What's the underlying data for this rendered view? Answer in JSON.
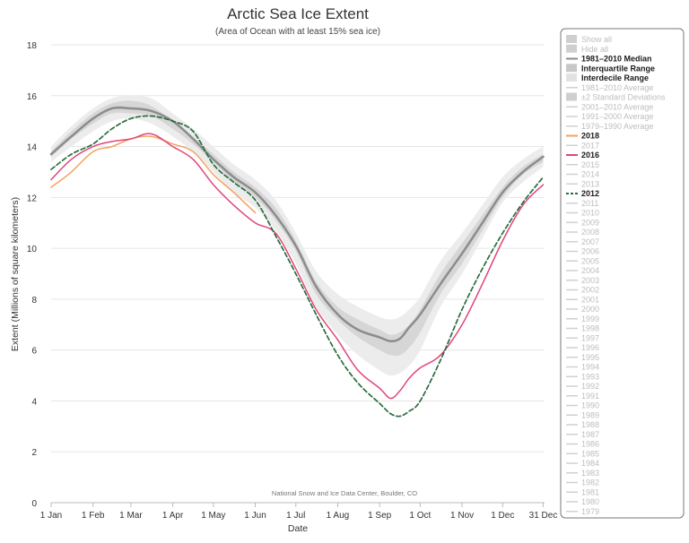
{
  "chart_data": {
    "type": "line",
    "title": "Arctic Sea Ice Extent",
    "subtitle": "(Area of Ocean with at least 15% sea ice)",
    "xlabel": "Date",
    "ylabel": "Extent (Millions of square kilometers)",
    "ylim": [
      0,
      18
    ],
    "y_ticks": [
      0,
      2,
      4,
      6,
      8,
      10,
      12,
      14,
      16,
      18
    ],
    "xlim": [
      1,
      366
    ],
    "x_ticks": [
      {
        "day": 1,
        "label": "1 Jan"
      },
      {
        "day": 32,
        "label": "1 Feb"
      },
      {
        "day": 60,
        "label": "1 Mar"
      },
      {
        "day": 91,
        "label": "1 Apr"
      },
      {
        "day": 121,
        "label": "1 May"
      },
      {
        "day": 152,
        "label": "1 Jun"
      },
      {
        "day": 182,
        "label": "1 Jul"
      },
      {
        "day": 213,
        "label": "1 Aug"
      },
      {
        "day": 244,
        "label": "1 Sep"
      },
      {
        "day": 274,
        "label": "1 Oct"
      },
      {
        "day": 305,
        "label": "1 Nov"
      },
      {
        "day": 335,
        "label": "1 Dec"
      },
      {
        "day": 365,
        "label": "31 Dec"
      }
    ],
    "grid": "horizontal",
    "legend_position": "right",
    "source_note": "National Snow and Ice Data Center, Boulder, CO",
    "x_day_of_year": [
      1,
      16,
      32,
      46,
      60,
      75,
      91,
      106,
      121,
      136,
      152,
      167,
      182,
      197,
      213,
      228,
      244,
      252,
      259,
      266,
      274,
      289,
      305,
      320,
      335,
      350,
      365
    ],
    "bands": [
      {
        "name": "Interdecile Range",
        "color": "#ececec",
        "lower": [
          13.4,
          14.0,
          14.6,
          15.0,
          15.1,
          14.9,
          14.4,
          13.8,
          13.0,
          12.2,
          11.6,
          10.7,
          9.4,
          7.7,
          6.6,
          5.8,
          5.2,
          5.0,
          5.1,
          5.4,
          6.0,
          7.7,
          9.0,
          10.4,
          11.8,
          12.6,
          13.2
        ],
        "upper": [
          14.0,
          14.8,
          15.5,
          15.9,
          16.0,
          15.9,
          15.3,
          14.7,
          14.0,
          13.3,
          12.7,
          11.9,
          10.6,
          9.1,
          8.2,
          7.7,
          7.3,
          7.2,
          7.3,
          7.6,
          8.1,
          9.5,
          10.6,
          11.7,
          12.8,
          13.5,
          14.0
        ]
      },
      {
        "name": "Interquartile Range",
        "color": "#d6d6d6",
        "lower": [
          13.6,
          14.3,
          14.9,
          15.3,
          15.3,
          15.2,
          14.7,
          14.1,
          13.4,
          12.6,
          12.0,
          11.1,
          9.9,
          8.2,
          7.2,
          6.5,
          6.0,
          5.8,
          5.8,
          6.1,
          6.7,
          8.2,
          9.4,
          10.7,
          12.0,
          12.9,
          13.4
        ],
        "upper": [
          13.8,
          14.6,
          15.3,
          15.7,
          15.8,
          15.6,
          15.0,
          14.4,
          13.7,
          13.0,
          12.4,
          11.6,
          10.3,
          8.7,
          7.7,
          7.2,
          6.8,
          6.6,
          6.7,
          7.0,
          7.6,
          9.0,
          10.2,
          11.3,
          12.4,
          13.2,
          13.7
        ]
      }
    ],
    "series": [
      {
        "name": "1981–2010 Median",
        "color": "#8c8c8c",
        "width": 2.5,
        "dash": "",
        "values": [
          13.7,
          14.4,
          15.1,
          15.5,
          15.5,
          15.4,
          15.0,
          14.3,
          13.5,
          12.8,
          12.2,
          11.3,
          10.1,
          8.5,
          7.4,
          6.8,
          6.5,
          6.35,
          6.45,
          6.9,
          7.4,
          8.6,
          9.8,
          11.0,
          12.2,
          13.0,
          13.6
        ]
      },
      {
        "name": "2018",
        "color": "#f4a25b",
        "width": 1.5,
        "dash": "",
        "values": [
          12.4,
          13.0,
          13.8,
          14.0,
          14.3,
          14.4,
          14.1,
          13.8,
          12.9,
          12.2,
          11.4,
          null,
          null,
          null,
          null,
          null,
          null,
          null,
          null,
          null,
          null,
          null,
          null,
          null,
          null,
          null,
          null
        ]
      },
      {
        "name": "2016",
        "color": "#e0457b",
        "width": 1.5,
        "dash": "",
        "values": [
          12.7,
          13.5,
          14.0,
          14.2,
          14.3,
          14.5,
          14.0,
          13.5,
          12.5,
          11.7,
          11.0,
          10.6,
          9.2,
          7.6,
          6.4,
          5.2,
          4.5,
          4.1,
          4.4,
          4.9,
          5.3,
          5.8,
          7.0,
          8.6,
          10.3,
          11.7,
          12.5
        ]
      },
      {
        "name": "2012",
        "color": "#2a6e3e",
        "width": 1.7,
        "dash": "5,3",
        "values": [
          13.1,
          13.7,
          14.1,
          14.7,
          15.1,
          15.2,
          15.0,
          14.6,
          13.3,
          12.6,
          11.9,
          10.5,
          9.0,
          7.4,
          5.8,
          4.7,
          3.9,
          3.5,
          3.4,
          3.6,
          4.0,
          5.6,
          7.6,
          9.2,
          10.6,
          11.8,
          12.8
        ]
      }
    ],
    "legend": [
      {
        "label": "Show all",
        "swatch": "box",
        "color": "#cfcfcf",
        "active": false
      },
      {
        "label": "Hide all",
        "swatch": "box",
        "color": "#cfcfcf",
        "active": false
      },
      {
        "label": "1981–2010 Median",
        "swatch": "line",
        "color": "#8c8c8c",
        "active": true
      },
      {
        "label": "Interquartile Range",
        "swatch": "box",
        "color": "#c8c8c8",
        "active": true
      },
      {
        "label": "Interdecile Range",
        "swatch": "box",
        "color": "#e2e2e2",
        "active": true
      },
      {
        "label": "1981–2010 Average",
        "swatch": "line",
        "color": "#d0d0d0",
        "active": false
      },
      {
        "label": "±2 Standard Deviations",
        "swatch": "box",
        "color": "#cfcfcf",
        "active": false
      },
      {
        "label": "2001–2010 Average",
        "swatch": "line",
        "color": "#d0d0d0",
        "active": false
      },
      {
        "label": "1991–2000 Average",
        "swatch": "line",
        "color": "#d0d0d0",
        "active": false
      },
      {
        "label": "1979–1990 Average",
        "swatch": "line",
        "color": "#d0d0d0",
        "active": false
      },
      {
        "label": "2018",
        "swatch": "line",
        "color": "#f4a25b",
        "active": true
      },
      {
        "label": "2017",
        "swatch": "line",
        "color": "#d0d0d0",
        "active": false
      },
      {
        "label": "2016",
        "swatch": "line",
        "color": "#e0457b",
        "active": true
      },
      {
        "label": "2015",
        "swatch": "line",
        "color": "#d0d0d0",
        "active": false
      },
      {
        "label": "2014",
        "swatch": "line",
        "color": "#d0d0d0",
        "active": false
      },
      {
        "label": "2013",
        "swatch": "line",
        "color": "#d0d0d0",
        "active": false
      },
      {
        "label": "2012",
        "swatch": "dash",
        "color": "#2a6e3e",
        "active": true
      },
      {
        "label": "2011",
        "swatch": "line",
        "color": "#d0d0d0",
        "active": false
      },
      {
        "label": "2010",
        "swatch": "line",
        "color": "#d0d0d0",
        "active": false
      },
      {
        "label": "2009",
        "swatch": "line",
        "color": "#d0d0d0",
        "active": false
      },
      {
        "label": "2008",
        "swatch": "line",
        "color": "#d0d0d0",
        "active": false
      },
      {
        "label": "2007",
        "swatch": "line",
        "color": "#d0d0d0",
        "active": false
      },
      {
        "label": "2006",
        "swatch": "line",
        "color": "#d0d0d0",
        "active": false
      },
      {
        "label": "2005",
        "swatch": "line",
        "color": "#d0d0d0",
        "active": false
      },
      {
        "label": "2004",
        "swatch": "line",
        "color": "#d0d0d0",
        "active": false
      },
      {
        "label": "2003",
        "swatch": "line",
        "color": "#d0d0d0",
        "active": false
      },
      {
        "label": "2002",
        "swatch": "line",
        "color": "#d0d0d0",
        "active": false
      },
      {
        "label": "2001",
        "swatch": "line",
        "color": "#d0d0d0",
        "active": false
      },
      {
        "label": "2000",
        "swatch": "line",
        "color": "#d0d0d0",
        "active": false
      },
      {
        "label": "1999",
        "swatch": "line",
        "color": "#d0d0d0",
        "active": false
      },
      {
        "label": "1998",
        "swatch": "line",
        "color": "#d0d0d0",
        "active": false
      },
      {
        "label": "1997",
        "swatch": "line",
        "color": "#d0d0d0",
        "active": false
      },
      {
        "label": "1996",
        "swatch": "line",
        "color": "#d0d0d0",
        "active": false
      },
      {
        "label": "1995",
        "swatch": "line",
        "color": "#d0d0d0",
        "active": false
      },
      {
        "label": "1994",
        "swatch": "line",
        "color": "#d0d0d0",
        "active": false
      },
      {
        "label": "1993",
        "swatch": "line",
        "color": "#d0d0d0",
        "active": false
      },
      {
        "label": "1992",
        "swatch": "line",
        "color": "#d0d0d0",
        "active": false
      },
      {
        "label": "1991",
        "swatch": "line",
        "color": "#d0d0d0",
        "active": false
      },
      {
        "label": "1990",
        "swatch": "line",
        "color": "#d0d0d0",
        "active": false
      },
      {
        "label": "1989",
        "swatch": "line",
        "color": "#d0d0d0",
        "active": false
      },
      {
        "label": "1988",
        "swatch": "line",
        "color": "#d0d0d0",
        "active": false
      },
      {
        "label": "1987",
        "swatch": "line",
        "color": "#d0d0d0",
        "active": false
      },
      {
        "label": "1986",
        "swatch": "line",
        "color": "#d0d0d0",
        "active": false
      },
      {
        "label": "1985",
        "swatch": "line",
        "color": "#d0d0d0",
        "active": false
      },
      {
        "label": "1984",
        "swatch": "line",
        "color": "#d0d0d0",
        "active": false
      },
      {
        "label": "1983",
        "swatch": "line",
        "color": "#d0d0d0",
        "active": false
      },
      {
        "label": "1982",
        "swatch": "line",
        "color": "#d0d0d0",
        "active": false
      },
      {
        "label": "1981",
        "swatch": "line",
        "color": "#d0d0d0",
        "active": false
      },
      {
        "label": "1980",
        "swatch": "line",
        "color": "#d0d0d0",
        "active": false
      },
      {
        "label": "1979",
        "swatch": "line",
        "color": "#d0d0d0",
        "active": false
      }
    ]
  }
}
